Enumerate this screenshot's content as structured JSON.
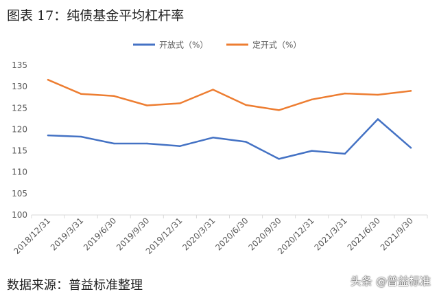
{
  "title": "图表 17：纯债基金平均杠杆率",
  "source": "数据来源：普益标准整理",
  "watermark": "头条 @普益标准",
  "chart_data": {
    "type": "line",
    "categories": [
      "2018/12/31",
      "2019/3/31",
      "2019/6/30",
      "2019/9/30",
      "2019/12/31",
      "2020/3/31",
      "2020/6/30",
      "2020/9/30",
      "2020/12/31",
      "2021/3/31",
      "2021/6/30",
      "2021/9/30"
    ],
    "series": [
      {
        "name": "开放式（%）",
        "color": "#4472c4",
        "values": [
          118.6,
          118.3,
          116.7,
          116.7,
          116.1,
          118.1,
          117.1,
          113.1,
          115.0,
          114.3,
          122.4,
          115.7
        ]
      },
      {
        "name": "定开式（%）",
        "color": "#ed7d31",
        "values": [
          131.6,
          128.3,
          127.8,
          125.6,
          126.1,
          129.3,
          125.7,
          124.5,
          127.0,
          128.4,
          128.1,
          129.0
        ]
      }
    ],
    "yticks": [
      100,
      105,
      110,
      115,
      120,
      125,
      130,
      135
    ],
    "ylim": [
      100,
      135
    ],
    "grid": false,
    "legend": "top-center"
  }
}
